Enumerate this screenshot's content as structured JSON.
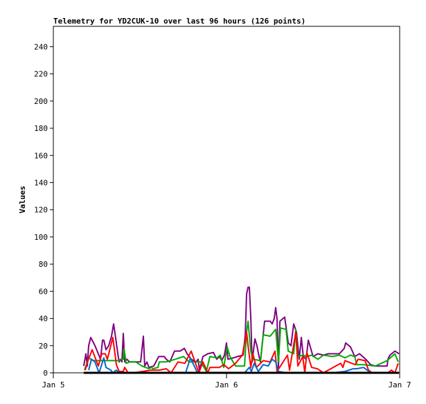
{
  "chart_data": {
    "type": "line",
    "title": "Telemetry for YD2CUK-10 over last 96 hours (126 points)",
    "xlabel": "",
    "ylabel": "Values",
    "xlim": [
      "Jan 5 00:00",
      "Jan 7 00:00"
    ],
    "ylim": [
      0,
      255
    ],
    "x_ticks": [
      "Jan 5",
      "Jan 6",
      "Jan 7"
    ],
    "y_ticks": [
      0,
      20,
      40,
      60,
      80,
      100,
      120,
      140,
      160,
      180,
      200,
      220,
      240
    ],
    "grid": false,
    "legend": "none",
    "series": [
      {
        "color": "#800080",
        "points": [
          [
            "Jan 5 04:13",
            5
          ],
          [
            "Jan 5 04:31",
            14
          ],
          [
            "Jan 5 04:42",
            5
          ],
          [
            "Jan 5 04:54",
            20
          ],
          [
            "Jan 5 05:11",
            26
          ],
          [
            "Jan 5 05:46",
            20
          ],
          [
            "Jan 5 06:14",
            14
          ],
          [
            "Jan 5 06:32",
            10
          ],
          [
            "Jan 5 06:49",
            24
          ],
          [
            "Jan 5 07:00",
            24
          ],
          [
            "Jan 5 07:18",
            17
          ],
          [
            "Jan 5 07:41",
            20
          ],
          [
            "Jan 5 08:04",
            27
          ],
          [
            "Jan 5 08:21",
            36
          ],
          [
            "Jan 5 08:38",
            26
          ],
          [
            "Jan 5 08:56",
            14
          ],
          [
            "Jan 5 09:07",
            8
          ],
          [
            "Jan 5 09:19",
            10
          ],
          [
            "Jan 5 09:30",
            8
          ],
          [
            "Jan 5 09:42",
            29
          ],
          [
            "Jan 5 09:53",
            8
          ],
          [
            "Jan 5 10:11",
            10
          ],
          [
            "Jan 5 10:34",
            8
          ],
          [
            "Jan 5 11:14",
            8
          ],
          [
            "Jan 5 12:06",
            8
          ],
          [
            "Jan 5 12:29",
            27
          ],
          [
            "Jan 5 12:40",
            5
          ],
          [
            "Jan 5 12:58",
            8
          ],
          [
            "Jan 5 13:15",
            4
          ],
          [
            "Jan 5 13:55",
            5
          ],
          [
            "Jan 5 14:36",
            12
          ],
          [
            "Jan 5 15:22",
            12
          ],
          [
            "Jan 5 15:39",
            10
          ],
          [
            "Jan 5 16:08",
            8
          ],
          [
            "Jan 5 16:48",
            16
          ],
          [
            "Jan 5 17:34",
            16
          ],
          [
            "Jan 5 18:09",
            18
          ],
          [
            "Jan 5 18:32",
            14
          ],
          [
            "Jan 5 19:06",
            10
          ],
          [
            "Jan 5 19:47",
            8
          ],
          [
            "Jan 5 20:04",
            10
          ],
          [
            "Jan 5 20:15",
            2
          ],
          [
            "Jan 5 20:44",
            12
          ],
          [
            "Jan 5 21:24",
            14
          ],
          [
            "Jan 5 22:11",
            15
          ],
          [
            "Jan 5 22:39",
            10
          ],
          [
            "Jan 5 23:02",
            12
          ],
          [
            "Jan 5 23:20",
            9
          ],
          [
            "Jan 5 23:43",
            13
          ],
          [
            "Jan 6 00:00",
            22
          ],
          [
            "Jan 6 00:12",
            10
          ],
          [
            "Jan 6 00:58",
            11
          ],
          [
            "Jan 6 01:32",
            12
          ],
          [
            "Jan 6 02:18",
            13
          ],
          [
            "Jan 6 02:36",
            28
          ],
          [
            "Jan 6 02:47",
            58
          ],
          [
            "Jan 6 02:59",
            63
          ],
          [
            "Jan 6 03:10",
            63
          ],
          [
            "Jan 6 03:22",
            40
          ],
          [
            "Jan 6 03:33",
            8
          ],
          [
            "Jan 6 03:56",
            25
          ],
          [
            "Jan 6 04:13",
            20
          ],
          [
            "Jan 6 04:31",
            12
          ],
          [
            "Jan 6 04:42",
            8
          ],
          [
            "Jan 6 05:17",
            38
          ],
          [
            "Jan 6 06:03",
            38
          ],
          [
            "Jan 6 06:20",
            36
          ],
          [
            "Jan 6 06:37",
            40
          ],
          [
            "Jan 6 06:49",
            48
          ],
          [
            "Jan 6 07:00",
            40
          ],
          [
            "Jan 6 07:12",
            4
          ],
          [
            "Jan 6 07:24",
            38
          ],
          [
            "Jan 6 08:04",
            41
          ],
          [
            "Jan 6 08:33",
            22
          ],
          [
            "Jan 6 08:56",
            20
          ],
          [
            "Jan 6 09:19",
            36
          ],
          [
            "Jan 6 09:42",
            30
          ],
          [
            "Jan 6 10:05",
            10
          ],
          [
            "Jan 6 10:22",
            26
          ],
          [
            "Jan 6 10:39",
            12
          ],
          [
            "Jan 6 11:02",
            10
          ],
          [
            "Jan 6 11:20",
            24
          ],
          [
            "Jan 6 12:00",
            12
          ],
          [
            "Jan 6 12:40",
            14
          ],
          [
            "Jan 6 13:26",
            13
          ],
          [
            "Jan 6 14:07",
            14
          ],
          [
            "Jan 6 14:53",
            14
          ],
          [
            "Jan 6 15:39",
            14
          ],
          [
            "Jan 6 16:19",
            18
          ],
          [
            "Jan 6 16:31",
            22
          ],
          [
            "Jan 6 17:11",
            19
          ],
          [
            "Jan 6 17:46",
            12
          ],
          [
            "Jan 6 18:26",
            14
          ],
          [
            "Jan 6 19:18",
            10
          ],
          [
            "Jan 6 19:58",
            6
          ],
          [
            "Jan 6 20:38",
            5
          ],
          [
            "Jan 6 21:30",
            5
          ],
          [
            "Jan 6 22:16",
            5
          ],
          [
            "Jan 6 22:22",
            10
          ],
          [
            "Jan 6 22:39",
            13
          ],
          [
            "Jan 6 23:20",
            16
          ],
          [
            "Jan 6 23:54",
            14
          ]
        ]
      },
      {
        "color": "#00aa00",
        "points": [
          [
            "Jan 5 04:19",
            2
          ],
          [
            "Jan 5 04:54",
            11
          ],
          [
            "Jan 5 05:34",
            9
          ],
          [
            "Jan 5 07:00",
            9
          ],
          [
            "Jan 5 08:56",
            9
          ],
          [
            "Jan 5 09:42",
            10
          ],
          [
            "Jan 5 09:48",
            18
          ],
          [
            "Jan 5 10:05",
            7
          ],
          [
            "Jan 5 10:34",
            8
          ],
          [
            "Jan 5 11:25",
            8
          ],
          [
            "Jan 5 12:17",
            5
          ],
          [
            "Jan 5 13:15",
            3
          ],
          [
            "Jan 5 13:32",
            4
          ],
          [
            "Jan 5 13:49",
            3
          ],
          [
            "Jan 5 14:30",
            4
          ],
          [
            "Jan 5 14:41",
            8
          ],
          [
            "Jan 5 15:39",
            8
          ],
          [
            "Jan 5 16:54",
            10
          ],
          [
            "Jan 5 18:03",
            12
          ],
          [
            "Jan 5 18:49",
            8
          ],
          [
            "Jan 5 20:27",
            8
          ],
          [
            "Jan 5 21:13",
            1
          ],
          [
            "Jan 5 21:42",
            12
          ],
          [
            "Jan 5 22:39",
            11
          ],
          [
            "Jan 5 23:08",
            13
          ],
          [
            "Jan 5 23:37",
            4
          ],
          [
            "Jan 6 00:06",
            19
          ],
          [
            "Jan 6 00:29",
            12
          ],
          [
            "Jan 6 01:15",
            5
          ],
          [
            "Jan 6 02:30",
            5
          ],
          [
            "Jan 6 02:47",
            30
          ],
          [
            "Jan 6 02:59",
            38
          ],
          [
            "Jan 6 03:22",
            16
          ],
          [
            "Jan 6 03:39",
            10
          ],
          [
            "Jan 6 04:42",
            9
          ],
          [
            "Jan 6 05:05",
            28
          ],
          [
            "Jan 6 06:03",
            27
          ],
          [
            "Jan 6 06:49",
            32
          ],
          [
            "Jan 6 07:12",
            8
          ],
          [
            "Jan 6 07:29",
            33
          ],
          [
            "Jan 6 08:15",
            32
          ],
          [
            "Jan 6 08:33",
            16
          ],
          [
            "Jan 6 09:19",
            14
          ],
          [
            "Jan 6 09:36",
            32
          ],
          [
            "Jan 6 09:53",
            12
          ],
          [
            "Jan 6 10:34",
            13
          ],
          [
            "Jan 6 11:08",
            12
          ],
          [
            "Jan 6 11:48",
            13
          ],
          [
            "Jan 6 12:40",
            10
          ],
          [
            "Jan 6 13:26",
            13
          ],
          [
            "Jan 6 14:41",
            12
          ],
          [
            "Jan 6 15:39",
            13
          ],
          [
            "Jan 6 16:25",
            11
          ],
          [
            "Jan 6 17:11",
            13
          ],
          [
            "Jan 6 17:46",
            12
          ],
          [
            "Jan 6 18:03",
            6
          ],
          [
            "Jan 6 19:00",
            6
          ],
          [
            "Jan 6 20:38",
            5
          ],
          [
            "Jan 6 22:16",
            9
          ],
          [
            "Jan 6 23:20",
            14
          ],
          [
            "Jan 6 23:48",
            8
          ]
        ]
      },
      {
        "color": "#ff0000",
        "points": [
          [
            "Jan 5 04:25",
            2
          ],
          [
            "Jan 5 04:48",
            9
          ],
          [
            "Jan 5 05:23",
            17
          ],
          [
            "Jan 5 06:14",
            5
          ],
          [
            "Jan 5 06:43",
            14
          ],
          [
            "Jan 5 07:12",
            14
          ],
          [
            "Jan 5 07:29",
            10
          ],
          [
            "Jan 5 08:15",
            26
          ],
          [
            "Jan 5 08:44",
            6
          ],
          [
            "Jan 5 09:07",
            1
          ],
          [
            "Jan 5 09:42",
            1
          ],
          [
            "Jan 5 09:53",
            4
          ],
          [
            "Jan 5 10:22",
            0
          ],
          [
            "Jan 5 11:08",
            0
          ],
          [
            "Jan 5 13:32",
            2
          ],
          [
            "Jan 5 14:41",
            2
          ],
          [
            "Jan 5 15:39",
            3
          ],
          [
            "Jan 5 16:19",
            0
          ],
          [
            "Jan 5 17:17",
            8
          ],
          [
            "Jan 5 18:14",
            7
          ],
          [
            "Jan 5 19:06",
            16
          ],
          [
            "Jan 5 20:10",
            0
          ],
          [
            "Jan 5 20:44",
            8
          ],
          [
            "Jan 5 21:24",
            0
          ],
          [
            "Jan 5 21:42",
            4
          ],
          [
            "Jan 5 23:02",
            4
          ],
          [
            "Jan 5 23:37",
            6
          ],
          [
            "Jan 6 00:17",
            3
          ],
          [
            "Jan 6 01:15",
            7
          ],
          [
            "Jan 6 02:12",
            13
          ],
          [
            "Jan 6 02:47",
            30
          ],
          [
            "Jan 6 02:59",
            20
          ],
          [
            "Jan 6 03:22",
            4
          ],
          [
            "Jan 6 03:39",
            14
          ],
          [
            "Jan 6 04:08",
            4
          ],
          [
            "Jan 6 05:05",
            9
          ],
          [
            "Jan 6 06:03",
            8
          ],
          [
            "Jan 6 06:43",
            16
          ],
          [
            "Jan 6 07:00",
            1
          ],
          [
            "Jan 6 07:29",
            5
          ],
          [
            "Jan 6 08:27",
            13
          ],
          [
            "Jan 6 08:44",
            2
          ],
          [
            "Jan 6 09:36",
            30
          ],
          [
            "Jan 6 09:53",
            5
          ],
          [
            "Jan 6 10:34",
            12
          ],
          [
            "Jan 6 10:51",
            0
          ],
          [
            "Jan 6 11:08",
            15
          ],
          [
            "Jan 6 11:48",
            4
          ],
          [
            "Jan 6 12:35",
            3
          ],
          [
            "Jan 6 13:26",
            0
          ],
          [
            "Jan 6 15:50",
            7
          ],
          [
            "Jan 6 16:08",
            4
          ],
          [
            "Jan 6 16:25",
            9
          ],
          [
            "Jan 6 17:51",
            6
          ],
          [
            "Jan 6 18:14",
            10
          ],
          [
            "Jan 6 19:12",
            9
          ],
          [
            "Jan 6 19:41",
            2
          ],
          [
            "Jan 6 20:10",
            0
          ],
          [
            "Jan 6 22:22",
            0
          ],
          [
            "Jan 6 22:51",
            2
          ],
          [
            "Jan 6 23:20",
            0
          ],
          [
            "Jan 6 23:48",
            7
          ]
        ]
      },
      {
        "color": "#0066cc",
        "points": [
          [
            "Jan 5 04:54",
            2
          ],
          [
            "Jan 5 05:17",
            10
          ],
          [
            "Jan 5 05:46",
            8
          ],
          [
            "Jan 5 06:20",
            0
          ],
          [
            "Jan 5 07:00",
            11
          ],
          [
            "Jan 5 07:18",
            4
          ],
          [
            "Jan 5 07:58",
            2
          ],
          [
            "Jan 5 08:15",
            0
          ],
          [
            "Jan 5 08:44",
            2
          ],
          [
            "Jan 5 09:07",
            0
          ],
          [
            "Jan 5 18:20",
            0
          ],
          [
            "Jan 5 19:00",
            11
          ],
          [
            "Jan 5 19:58",
            0
          ],
          [
            "Jan 6 02:30",
            0
          ],
          [
            "Jan 6 03:10",
            4
          ],
          [
            "Jan 6 03:27",
            1
          ],
          [
            "Jan 6 03:50",
            7
          ],
          [
            "Jan 6 04:25",
            1
          ],
          [
            "Jan 6 05:05",
            6
          ],
          [
            "Jan 6 05:46",
            5
          ],
          [
            "Jan 6 06:20",
            10
          ],
          [
            "Jan 6 06:49",
            8
          ],
          [
            "Jan 6 07:12",
            1
          ],
          [
            "Jan 6 08:15",
            0
          ],
          [
            "Jan 6 14:41",
            0
          ],
          [
            "Jan 6 16:25",
            1
          ],
          [
            "Jan 6 17:34",
            3
          ],
          [
            "Jan 6 18:03",
            3
          ],
          [
            "Jan 6 19:00",
            4
          ],
          [
            "Jan 6 19:58",
            0
          ]
        ]
      },
      {
        "color": "#000000",
        "points": [
          [
            "Jan 5 04:13",
            0
          ],
          [
            "Jan 6 23:54",
            0
          ]
        ]
      }
    ]
  }
}
